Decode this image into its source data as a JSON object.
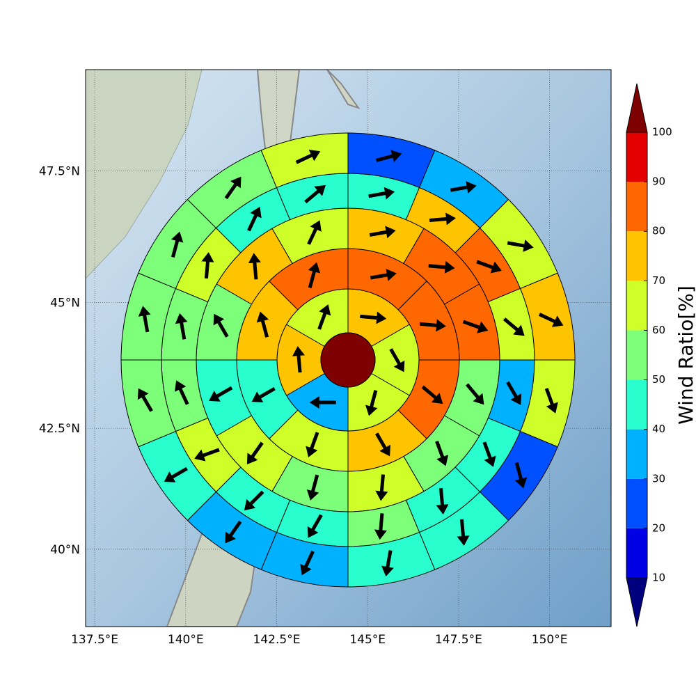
{
  "chart_data": {
    "type": "polar",
    "xlim": [
      137.25,
      151.69
    ],
    "ylim": [
      38.35,
      49.35
    ],
    "xticks": [
      {
        "value": 137.5,
        "label": "137.5°E"
      },
      {
        "value": 140,
        "label": "140°E"
      },
      {
        "value": 142.5,
        "label": "142.5°E"
      },
      {
        "value": 145,
        "label": "145°E"
      },
      {
        "value": 147.5,
        "label": "147.5°E"
      },
      {
        "value": 150,
        "label": "150°E"
      }
    ],
    "yticks": [
      {
        "value": 40,
        "label": "40°N"
      },
      {
        "value": 42.5,
        "label": "42.5°N"
      },
      {
        "value": 45,
        "label": "45°N"
      },
      {
        "value": 47.5,
        "label": "47.5°N"
      }
    ],
    "grid": true,
    "center_value": 105,
    "rings": [
      {
        "values": [
          75,
          65,
          65,
          35,
          75,
          65
        ],
        "directions": [
          95,
          150,
          195,
          270,
          355,
          20
        ]
      },
      {
        "values": [
          85,
          85,
          85,
          75,
          65,
          45,
          75,
          85
        ],
        "directions": [
          80,
          95,
          130,
          150,
          200,
          240,
          345,
          15
        ]
      },
      {
        "values": [
          75,
          85,
          85,
          55,
          55,
          65,
          55,
          65,
          45,
          55,
          75,
          65
        ],
        "directions": [
          80,
          95,
          110,
          140,
          160,
          185,
          195,
          215,
          240,
          330,
          355,
          25
        ]
      },
      {
        "values": [
          45,
          75,
          85,
          65,
          35,
          45,
          45,
          55,
          45,
          45,
          65,
          55,
          55,
          65,
          45,
          45
        ],
        "directions": [
          80,
          85,
          110,
          130,
          150,
          160,
          175,
          185,
          210,
          225,
          250,
          335,
          350,
          5,
          25,
          50
        ]
      },
      {
        "values": [
          25,
          35,
          65,
          75,
          65,
          25,
          45,
          45,
          35,
          35,
          45,
          55,
          55,
          55,
          55,
          65
        ],
        "directions": [
          75,
          80,
          100,
          115,
          160,
          165,
          175,
          190,
          205,
          215,
          240,
          330,
          350,
          15,
          35,
          65
        ]
      }
    ],
    "colorbar": {
      "label": "Wind Ratio[%]",
      "levels": [
        10,
        20,
        30,
        40,
        50,
        60,
        70,
        80,
        90,
        100
      ],
      "colors": [
        "#00007f",
        "#0000e5",
        "#0050ff",
        "#00b1ff",
        "#29ffce",
        "#7dff7a",
        "#ceff29",
        "#ffc400",
        "#ff6800",
        "#e50000",
        "#7f0000"
      ],
      "extend": "both"
    }
  }
}
